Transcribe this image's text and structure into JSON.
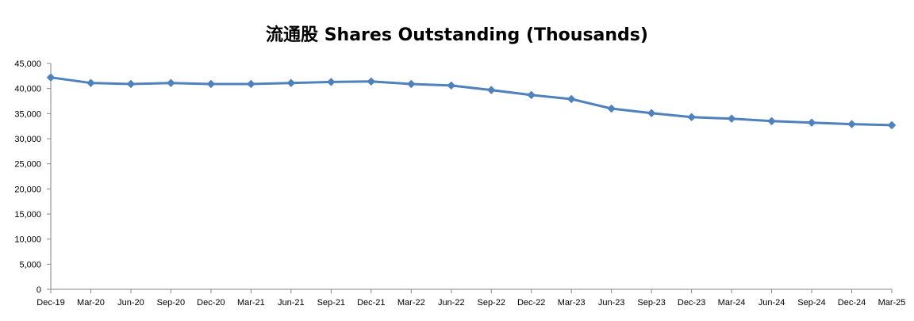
{
  "chart_data": {
    "type": "line",
    "title": "流通股 Shares Outstanding (Thousands)",
    "xlabel": "",
    "ylabel": "",
    "ylim": [
      0,
      45000
    ],
    "yticks": [
      0,
      5000,
      10000,
      15000,
      20000,
      25000,
      30000,
      35000,
      40000,
      45000
    ],
    "ytick_labels": [
      "0",
      "5,000",
      "10,000",
      "15,000",
      "20,000",
      "25,000",
      "30,000",
      "35,000",
      "40,000",
      "45,000"
    ],
    "categories": [
      "Dec-19",
      "Mar-20",
      "Jun-20",
      "Sep-20",
      "Dec-20",
      "Mar-21",
      "Jun-21",
      "Sep-21",
      "Dec-21",
      "Mar-22",
      "Jun-22",
      "Sep-22",
      "Dec-22",
      "Mar-23",
      "Jun-23",
      "Sep-23",
      "Dec-23",
      "Mar-24",
      "Jun-24",
      "Sep-24",
      "Dec-24",
      "Mar-25"
    ],
    "series": [
      {
        "name": "Shares Outstanding",
        "color": "#4F81BD",
        "values": [
          42200,
          41100,
          40900,
          41100,
          40900,
          40900,
          41100,
          41300,
          41400,
          40900,
          40600,
          39700,
          38700,
          37900,
          36000,
          35100,
          34300,
          34000,
          33500,
          33200,
          32900,
          32700
        ]
      }
    ],
    "grid": false,
    "legend": "none"
  }
}
